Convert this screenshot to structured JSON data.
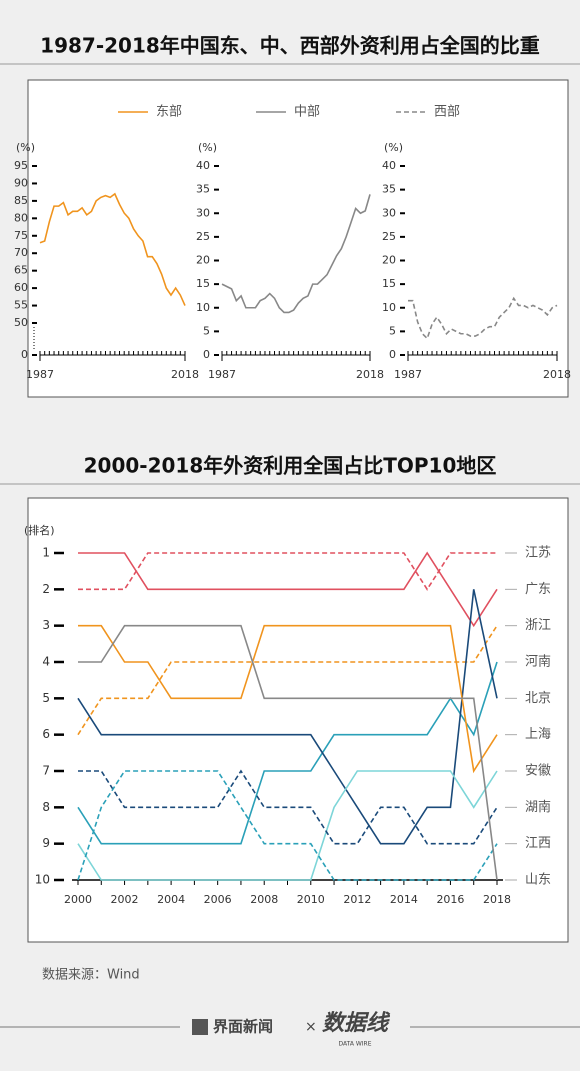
{
  "header": {
    "title": "1987-2018年中国东、中、西部外资利用占全国的比重",
    "title2": "2000-2018年外资利用全国占比TOP10地区"
  },
  "footer": {
    "source": "数据来源：Wind",
    "brand": "界面新闻",
    "times": "×",
    "logo": "数据线",
    "logo_sub": "DATA WIRE"
  },
  "chart_data": [
    {
      "type": "line",
      "y_label": "(%)",
      "xlim": [
        1987,
        2018
      ],
      "xticks": [
        1987,
        2018
      ],
      "ylim": [
        0,
        95
      ],
      "axis_break": [
        0,
        50
      ],
      "yticks": [
        0,
        50,
        55,
        60,
        65,
        70,
        75,
        80,
        85,
        90,
        95
      ],
      "x": [
        1987,
        1988,
        1989,
        1990,
        1991,
        1992,
        1993,
        1994,
        1995,
        1996,
        1997,
        1998,
        1999,
        2000,
        2001,
        2002,
        2003,
        2004,
        2005,
        2006,
        2007,
        2008,
        2009,
        2010,
        2011,
        2012,
        2013,
        2014,
        2015,
        2016,
        2017,
        2018
      ],
      "series": [
        {
          "name": "东部",
          "color": "#f0941e",
          "dashed": false,
          "values": [
            73,
            73.5,
            79,
            83.5,
            83.5,
            84.5,
            81,
            82,
            82,
            83,
            81,
            82,
            85,
            86,
            86.5,
            86,
            87,
            84,
            81.5,
            80,
            77,
            75,
            73.5,
            69,
            69,
            67,
            64,
            60,
            58,
            60,
            58,
            55
          ]
        }
      ]
    },
    {
      "type": "line",
      "y_label": "(%)",
      "xlim": [
        1987,
        2018
      ],
      "xticks": [
        1987,
        2018
      ],
      "ylim": [
        0,
        40
      ],
      "yticks": [
        0,
        5,
        10,
        15,
        20,
        25,
        30,
        35,
        40
      ],
      "x": [
        1987,
        1988,
        1989,
        1990,
        1991,
        1992,
        1993,
        1994,
        1995,
        1996,
        1997,
        1998,
        1999,
        2000,
        2001,
        2002,
        2003,
        2004,
        2005,
        2006,
        2007,
        2008,
        2009,
        2010,
        2011,
        2012,
        2013,
        2014,
        2015,
        2016,
        2017,
        2018
      ],
      "series": [
        {
          "name": "中部",
          "color": "#888888",
          "dashed": false,
          "values": [
            15,
            14.5,
            14,
            11.5,
            12.5,
            10,
            10,
            10,
            11.5,
            12,
            13,
            12,
            10,
            9,
            9,
            9.5,
            11,
            12,
            12.5,
            15,
            15,
            16,
            17,
            19,
            21,
            22.5,
            25,
            28,
            31,
            30,
            30.5,
            34
          ]
        }
      ]
    },
    {
      "type": "line",
      "y_label": "(%)",
      "xlim": [
        1987,
        2018
      ],
      "xticks": [
        1987,
        2018
      ],
      "ylim": [
        0,
        40
      ],
      "yticks": [
        0,
        5,
        10,
        15,
        20,
        25,
        30,
        35,
        40
      ],
      "x": [
        1987,
        1988,
        1989,
        1990,
        1991,
        1992,
        1993,
        1994,
        1995,
        1996,
        1997,
        1998,
        1999,
        2000,
        2001,
        2002,
        2003,
        2004,
        2005,
        2006,
        2007,
        2008,
        2009,
        2010,
        2011,
        2012,
        2013,
        2014,
        2015,
        2016,
        2017,
        2018
      ],
      "series": [
        {
          "name": "西部",
          "color": "#888888",
          "dashed": true,
          "values": [
            11.5,
            11.5,
            7,
            4.5,
            3.5,
            6.5,
            8,
            6.5,
            4.5,
            5.5,
            5,
            4.5,
            4.5,
            4,
            4,
            4.5,
            5.5,
            6,
            6,
            8,
            9,
            10,
            12,
            10.5,
            10.5,
            10,
            10.5,
            10,
            9.5,
            8.5,
            10,
            10.5
          ]
        }
      ]
    },
    {
      "type": "bump",
      "y_label": "(排名)",
      "xlim": [
        2000,
        2018
      ],
      "xticks": [
        2000,
        2002,
        2004,
        2006,
        2008,
        2010,
        2012,
        2014,
        2016,
        2018
      ],
      "ylim": [
        10,
        1
      ],
      "yticks": [
        1,
        2,
        3,
        4,
        5,
        6,
        7,
        8,
        9,
        10
      ],
      "x": [
        2000,
        2001,
        2002,
        2003,
        2004,
        2005,
        2006,
        2007,
        2008,
        2009,
        2010,
        2011,
        2012,
        2013,
        2014,
        2015,
        2016,
        2017,
        2018
      ],
      "series": [
        {
          "name": "江苏",
          "color": "#e0505f",
          "dashed": true,
          "values": [
            2,
            2,
            2,
            1,
            1,
            1,
            1,
            1,
            1,
            1,
            1,
            1,
            1,
            1,
            1,
            2,
            1,
            1,
            1
          ]
        },
        {
          "name": "广东",
          "color": "#e0505f",
          "dashed": false,
          "values": [
            1,
            1,
            1,
            2,
            2,
            2,
            2,
            2,
            2,
            2,
            2,
            2,
            2,
            2,
            2,
            1,
            2,
            3,
            2
          ]
        },
        {
          "name": "浙江",
          "color": "#f0941e",
          "dashed": true,
          "values": [
            6,
            5,
            5,
            5,
            4,
            4,
            4,
            4,
            4,
            4,
            4,
            4,
            4,
            4,
            4,
            4,
            4,
            4,
            3
          ]
        },
        {
          "name": "河南",
          "color": "#2aa0b8",
          "dashed": false,
          "values": [
            8,
            9,
            9,
            9,
            9,
            9,
            9,
            9,
            7,
            7,
            7,
            6,
            6,
            6,
            6,
            6,
            5,
            6,
            4
          ]
        },
        {
          "name": "北京",
          "color": "#1a4a7a",
          "dashed": false,
          "values": [
            5,
            6,
            6,
            6,
            6,
            6,
            6,
            6,
            6,
            6,
            6,
            7,
            8,
            9,
            9,
            8,
            8,
            2,
            5
          ]
        },
        {
          "name": "上海",
          "color": "#f0941e",
          "dashed": false,
          "values": [
            3,
            3,
            4,
            4,
            5,
            5,
            5,
            5,
            3,
            3,
            3,
            3,
            3,
            3,
            3,
            3,
            3,
            7,
            6
          ]
        },
        {
          "name": "安徽",
          "color": "#7dd5d8",
          "dashed": false,
          "values": [
            9,
            10,
            10,
            10,
            10,
            10,
            10,
            10,
            10,
            10,
            10,
            8,
            7,
            7,
            7,
            7,
            7,
            8,
            7
          ]
        },
        {
          "name": "湖南",
          "color": "#1a4a7a",
          "dashed": true,
          "values": [
            7,
            7,
            8,
            8,
            8,
            8,
            8,
            7,
            8,
            8,
            8,
            9,
            9,
            8,
            8,
            9,
            9,
            9,
            8
          ]
        },
        {
          "name": "江西",
          "color": "#2aa0b8",
          "dashed": true,
          "values": [
            10,
            8,
            7,
            7,
            7,
            7,
            7,
            8,
            9,
            9,
            9,
            10,
            10,
            10,
            10,
            10,
            10,
            10,
            9
          ]
        },
        {
          "name": "山东",
          "color": "#888888",
          "dashed": false,
          "values": [
            4,
            4,
            3,
            3,
            3,
            3,
            3,
            3,
            5,
            5,
            5,
            5,
            5,
            5,
            5,
            5,
            5,
            5,
            10
          ]
        }
      ]
    }
  ]
}
